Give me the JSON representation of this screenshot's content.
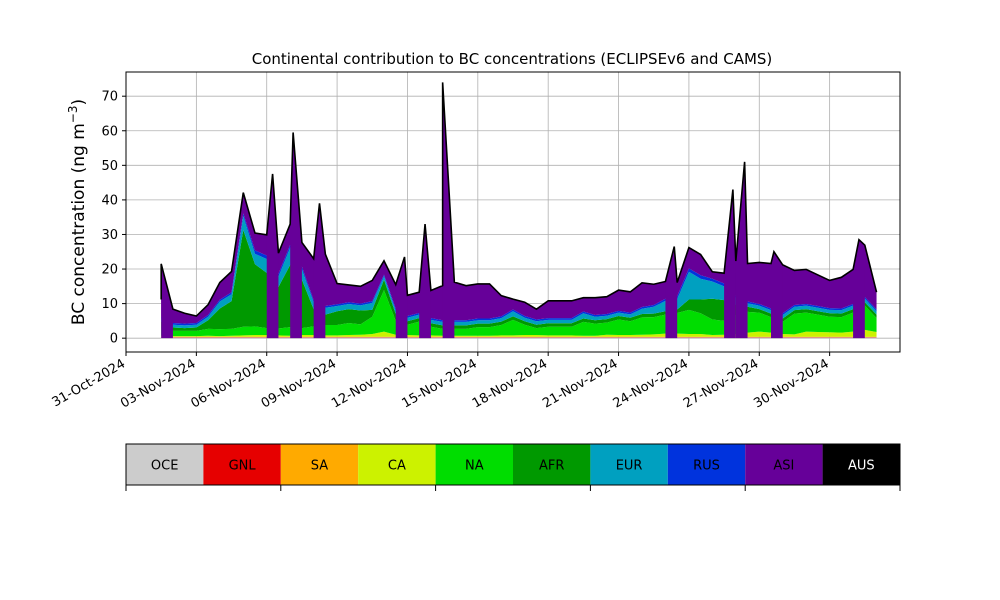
{
  "chart_data": {
    "type": "area",
    "title": "Continental contribution to BC concentrations (ECLIPSEv6 and CAMS)",
    "xlabel": "",
    "ylabel": "BC concentration (ng m",
    "ylabel_superscript": "−3",
    "ylabel_close": ")",
    "xlim": [
      "2024-10-31",
      "2024-12-03"
    ],
    "ylim": [
      -4,
      77
    ],
    "grid": true,
    "x_ticks": [
      "31-Oct-2024",
      "03-Nov-2024",
      "06-Nov-2024",
      "09-Nov-2024",
      "12-Nov-2024",
      "15-Nov-2024",
      "18-Nov-2024",
      "21-Nov-2024",
      "24-Nov-2024",
      "27-Nov-2024",
      "30-Nov-2024"
    ],
    "y_ticks": [
      "0",
      "10",
      "20",
      "30",
      "40",
      "50",
      "60",
      "70"
    ],
    "legend": {
      "placement": "below",
      "entries": [
        {
          "name": "OCE",
          "color": "#cccccc",
          "text_color": "#000000"
        },
        {
          "name": "GNL",
          "color": "#e60000",
          "text_color": "#000000"
        },
        {
          "name": "SA",
          "color": "#ffaa00",
          "text_color": "#000000"
        },
        {
          "name": "CA",
          "color": "#ccf200",
          "text_color": "#000000"
        },
        {
          "name": "NA",
          "color": "#00dd00",
          "text_color": "#000000"
        },
        {
          "name": "AFR",
          "color": "#009900",
          "text_color": "#000000"
        },
        {
          "name": "EUR",
          "color": "#00a0c0",
          "text_color": "#000000"
        },
        {
          "name": "RUS",
          "color": "#0033dd",
          "text_color": "#000000"
        },
        {
          "name": "ASI",
          "color": "#660099",
          "text_color": "#000000"
        },
        {
          "name": "AUS",
          "color": "#000000",
          "text_color": "#ffffff"
        }
      ]
    },
    "x": [
      "2024-11-01T12:00",
      "2024-11-02T00:00",
      "2024-11-02T12:00",
      "2024-11-03T00:00",
      "2024-11-03T12:00",
      "2024-11-04T00:00",
      "2024-11-04T12:00",
      "2024-11-05T00:00",
      "2024-11-05T12:00",
      "2024-11-06T00:00",
      "2024-11-06T12:00",
      "2024-11-07T00:00",
      "2024-11-07T12:00",
      "2024-11-08T00:00",
      "2024-11-08T12:00",
      "2024-11-09T00:00",
      "2024-11-09T12:00",
      "2024-11-10T00:00",
      "2024-11-10T12:00",
      "2024-11-11T00:00",
      "2024-11-11T12:00",
      "2024-11-12T00:00",
      "2024-11-12T12:00",
      "2024-11-13T00:00",
      "2024-11-13T12:00",
      "2024-11-14T00:00",
      "2024-11-14T12:00",
      "2024-11-15T00:00",
      "2024-11-15T12:00",
      "2024-11-16T00:00",
      "2024-11-16T12:00",
      "2024-11-17T00:00",
      "2024-11-17T12:00",
      "2024-11-18T00:00",
      "2024-11-18T12:00",
      "2024-11-19T00:00",
      "2024-11-19T12:00",
      "2024-11-20T00:00",
      "2024-11-20T12:00",
      "2024-11-21T00:00",
      "2024-11-21T12:00",
      "2024-11-22T00:00",
      "2024-11-22T12:00",
      "2024-11-23T00:00",
      "2024-11-23T12:00",
      "2024-11-24T00:00",
      "2024-11-24T12:00",
      "2024-11-25T00:00",
      "2024-11-25T12:00",
      "2024-11-26T00:00",
      "2024-11-26T12:00",
      "2024-11-27T00:00",
      "2024-11-27T12:00",
      "2024-11-28T00:00",
      "2024-11-28T12:00",
      "2024-11-29T00:00",
      "2024-11-29T12:00",
      "2024-11-30T00:00",
      "2024-11-30T12:00",
      "2024-12-01T00:00",
      "2024-12-01T12:00",
      "2024-12-02T00:00"
    ],
    "series": [
      {
        "name": "OCE",
        "values": [
          0.2,
          0.2,
          0.2,
          0.2,
          0.2,
          0.2,
          0.2,
          0.2,
          0.2,
          0.2,
          0.2,
          0.2,
          0.2,
          0.2,
          0.2,
          0.2,
          0.2,
          0.2,
          0.2,
          0.2,
          0.2,
          0.2,
          0.2,
          0.2,
          0.2,
          0.2,
          0.2,
          0.2,
          0.2,
          0.2,
          0.2,
          0.2,
          0.2,
          0.2,
          0.2,
          0.2,
          0.2,
          0.2,
          0.2,
          0.2,
          0.2,
          0.2,
          0.2,
          0.2,
          0.2,
          0.2,
          0.2,
          0.2,
          0.2,
          0.2,
          0.2,
          0.2,
          0.2,
          0.2,
          0.2,
          0.2,
          0.2,
          0.2,
          0.2,
          0.2,
          0.2,
          0.2
        ]
      },
      {
        "name": "GNL",
        "values": [
          0.1,
          0.1,
          0.1,
          0.1,
          0.1,
          0.1,
          0.1,
          0.1,
          0.1,
          0.1,
          0.1,
          0.1,
          0.1,
          0.1,
          0.1,
          0.1,
          0.1,
          0.1,
          0.1,
          0.1,
          0.1,
          0.1,
          0.1,
          0.1,
          0.1,
          0.1,
          0.1,
          0.1,
          0.1,
          0.1,
          0.1,
          0.1,
          0.1,
          0.1,
          0.1,
          0.1,
          0.1,
          0.1,
          0.1,
          0.1,
          0.1,
          0.1,
          0.1,
          0.1,
          0.1,
          0.1,
          0.1,
          0.1,
          0.1,
          0.1,
          0.1,
          0.1,
          0.1,
          0.1,
          0.1,
          0.1,
          0.1,
          0.1,
          0.1,
          0.1,
          0.1,
          0.1
        ]
      },
      {
        "name": "SA",
        "values": [
          0.1,
          0.1,
          0.1,
          0.1,
          0.1,
          0.1,
          0.1,
          0.1,
          0.1,
          0.1,
          0.1,
          0.1,
          0.1,
          0.1,
          0.1,
          0.1,
          0.1,
          0.1,
          0.1,
          0.1,
          0.1,
          0.1,
          0.1,
          0.1,
          0.1,
          0.1,
          0.1,
          0.1,
          0.1,
          0.1,
          0.1,
          0.1,
          0.1,
          0.1,
          0.1,
          0.1,
          0.1,
          0.1,
          0.1,
          0.1,
          0.1,
          0.1,
          0.1,
          0.1,
          0.1,
          0.1,
          0.1,
          0.1,
          0.1,
          0.1,
          0.1,
          0.1,
          0.1,
          0.1,
          0.1,
          0.1,
          0.1,
          0.1,
          0.1,
          0.1,
          0.1,
          0.1
        ]
      },
      {
        "name": "CA",
        "values": [
          0.3,
          0.2,
          0.2,
          0.2,
          0.3,
          0.2,
          0.3,
          0.4,
          0.5,
          0.5,
          0.4,
          0.3,
          0.5,
          0.5,
          0.4,
          0.4,
          0.5,
          0.6,
          0.8,
          1.5,
          0.6,
          0.5,
          0.4,
          0.4,
          0.3,
          0.3,
          0.3,
          0.3,
          0.3,
          0.4,
          0.4,
          0.5,
          0.5,
          0.4,
          0.4,
          0.4,
          0.3,
          0.3,
          0.6,
          0.5,
          0.5,
          0.6,
          0.7,
          0.9,
          0.9,
          0.8,
          0.8,
          0.5,
          0.6,
          0.8,
          1.2,
          1.5,
          1.2,
          0.8,
          0.7,
          1.5,
          1.4,
          1.3,
          1.2,
          1.5,
          2.0,
          1.4
        ]
      },
      {
        "name": "NA",
        "values": [
          2.0,
          1.5,
          1.5,
          1.5,
          2.0,
          2.0,
          2.0,
          2.5,
          2.5,
          2.0,
          2.0,
          2.5,
          2.0,
          2.5,
          3.0,
          3.0,
          3.5,
          3.0,
          5.0,
          12.0,
          4.0,
          3.0,
          4.0,
          2.5,
          2.0,
          2.0,
          2.0,
          2.5,
          2.5,
          3.0,
          4.5,
          3.0,
          2.0,
          2.5,
          2.5,
          2.5,
          4.0,
          3.5,
          3.5,
          4.5,
          4.0,
          5.0,
          5.0,
          5.5,
          6.0,
          7.0,
          6.0,
          4.5,
          4.0,
          5.5,
          6.0,
          5.5,
          4.5,
          3.5,
          6.0,
          5.5,
          5.0,
          4.5,
          4.5,
          5.5,
          7.0,
          4.0
        ]
      },
      {
        "name": "AFR",
        "values": [
          2.0,
          1.0,
          0.8,
          1.0,
          2.5,
          6.0,
          8.0,
          28.0,
          18.0,
          16.0,
          12.0,
          18.0,
          14.0,
          5.0,
          3.0,
          4.0,
          4.0,
          4.0,
          2.0,
          3.0,
          2.0,
          1.0,
          1.0,
          1.0,
          1.0,
          1.0,
          1.0,
          1.0,
          1.0,
          1.0,
          1.0,
          1.0,
          1.0,
          1.0,
          1.0,
          1.0,
          1.0,
          1.0,
          1.0,
          1.0,
          1.0,
          1.0,
          1.0,
          1.0,
          1.0,
          3.0,
          4.0,
          6.0,
          6.0,
          3.0,
          1.5,
          1.0,
          1.0,
          1.0,
          1.0,
          1.0,
          1.0,
          1.0,
          1.0,
          1.0,
          1.0,
          1.0
        ]
      },
      {
        "name": "EUR",
        "values": [
          1.0,
          0.8,
          0.8,
          0.8,
          1.0,
          2.0,
          2.0,
          4.0,
          3.0,
          4.0,
          3.0,
          5.0,
          3.0,
          2.0,
          2.0,
          1.5,
          1.5,
          1.5,
          2.0,
          1.0,
          1.0,
          1.0,
          1.0,
          1.0,
          1.0,
          1.0,
          1.0,
          1.0,
          1.0,
          1.0,
          1.5,
          1.0,
          1.0,
          1.0,
          1.0,
          1.0,
          1.5,
          1.0,
          1.0,
          1.0,
          1.0,
          1.5,
          2.0,
          3.0,
          3.0,
          8.0,
          6.0,
          5.0,
          4.0,
          2.0,
          1.0,
          1.0,
          1.0,
          1.0,
          1.0,
          1.0,
          1.0,
          1.0,
          1.0,
          1.0,
          1.0,
          1.0
        ]
      },
      {
        "name": "RUS",
        "values": [
          0.5,
          0.5,
          0.5,
          0.5,
          0.5,
          0.5,
          0.6,
          0.8,
          1.0,
          1.0,
          0.8,
          0.8,
          0.8,
          0.6,
          0.5,
          0.5,
          0.5,
          0.5,
          0.5,
          0.5,
          0.5,
          0.5,
          0.5,
          0.5,
          0.5,
          0.5,
          0.5,
          0.5,
          0.5,
          0.5,
          0.5,
          0.5,
          0.5,
          0.5,
          0.5,
          0.5,
          0.5,
          0.5,
          0.5,
          0.5,
          0.5,
          0.5,
          0.5,
          0.6,
          0.8,
          1.0,
          1.0,
          0.8,
          0.8,
          0.6,
          0.5,
          0.5,
          0.5,
          0.5,
          0.5,
          0.5,
          0.5,
          0.5,
          0.5,
          0.5,
          0.5,
          0.5
        ]
      },
      {
        "name": "ASI",
        "values": [
          5.0,
          4.0,
          3.0,
          2.0,
          3.0,
          5.0,
          6.0,
          6.0,
          5.0,
          6.0,
          6.0,
          6.0,
          7.0,
          12.0,
          15.0,
          6.0,
          5.0,
          5.0,
          6.0,
          4.0,
          7.0,
          6.0,
          6.0,
          8.0,
          10.0,
          11.0,
          10.0,
          10.0,
          10.0,
          6.0,
          3.0,
          4.0,
          3.0,
          5.0,
          5.0,
          5.0,
          4.0,
          5.0,
          5.0,
          6.0,
          6.0,
          7.0,
          6.0,
          5.0,
          4.0,
          6.0,
          6.0,
          2.0,
          3.0,
          10.0,
          11.0,
          12.0,
          13.0,
          14.0,
          10.0,
          10.0,
          9.0,
          8.0,
          9.0,
          10.0,
          15.0,
          5.0
        ]
      },
      {
        "name": "AUS",
        "values": [
          0,
          0,
          0,
          0,
          0,
          0,
          0,
          0,
          0,
          0,
          0,
          0,
          0,
          0,
          0,
          0,
          0,
          0,
          0,
          0,
          0,
          0,
          0,
          0,
          0,
          0,
          0,
          0,
          0,
          0,
          0,
          0,
          0,
          0,
          0,
          0,
          0,
          0,
          0,
          0,
          0,
          0,
          0,
          0,
          0,
          0,
          0,
          0,
          0,
          0,
          0,
          0,
          0,
          0,
          0,
          0,
          0,
          0,
          0,
          0,
          0,
          0
        ]
      }
    ],
    "peaks": [
      {
        "x": "2024-11-01T12:00",
        "total": 21.5
      },
      {
        "x": "2024-11-06T06:00",
        "total": 47.5
      },
      {
        "x": "2024-11-07T03:00",
        "total": 59.5
      },
      {
        "x": "2024-11-08T06:00",
        "total": 39.0
      },
      {
        "x": "2024-11-11T21:00",
        "total": 23.5
      },
      {
        "x": "2024-11-12T18:00",
        "total": 33.0
      },
      {
        "x": "2024-11-13T12:00",
        "total": 74.0
      },
      {
        "x": "2024-11-23T09:00",
        "total": 26.5
      },
      {
        "x": "2024-11-25T21:00",
        "total": 43.0
      },
      {
        "x": "2024-11-26T09:00",
        "total": 51.0
      },
      {
        "x": "2024-11-27T15:00",
        "total": 25.0
      },
      {
        "x": "2024-12-01T06:00",
        "total": 28.5
      }
    ]
  }
}
